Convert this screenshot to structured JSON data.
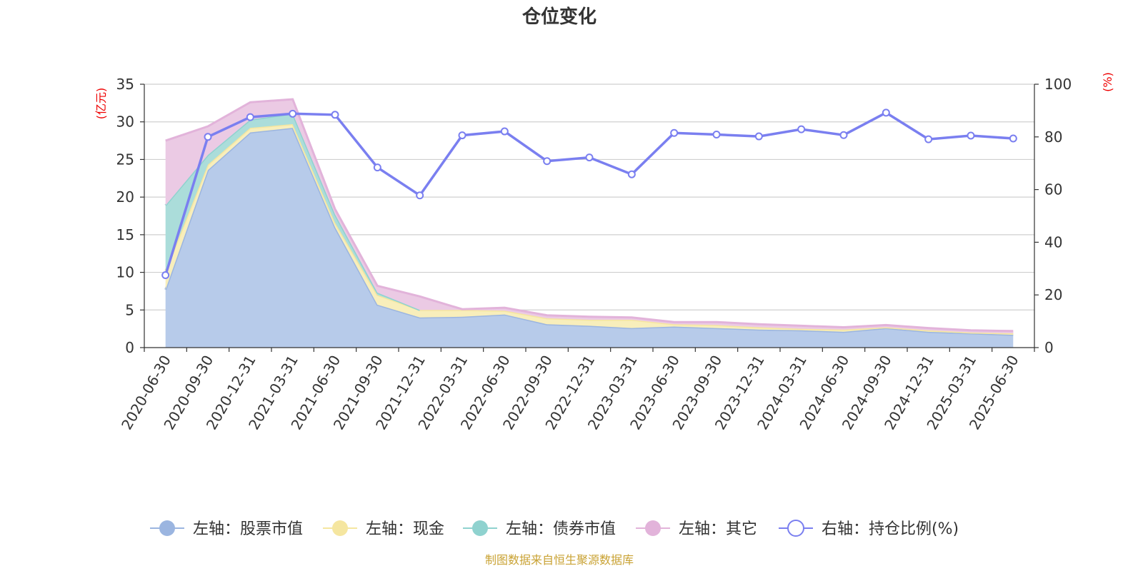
{
  "chart_data": {
    "type": "area",
    "title": "仓位变化",
    "categories": [
      "2020-06-30",
      "2020-09-30",
      "2020-12-31",
      "2021-03-31",
      "2021-06-30",
      "2021-09-30",
      "2021-12-31",
      "2022-03-31",
      "2022-06-30",
      "2022-09-30",
      "2022-12-31",
      "2023-03-31",
      "2023-06-30",
      "2023-09-30",
      "2023-12-31",
      "2024-03-31",
      "2024-06-30",
      "2024-09-30",
      "2024-12-31",
      "2025-03-31",
      "2025-06-30"
    ],
    "left_axis": {
      "unit": "(亿元)",
      "min": 0,
      "max": 35,
      "ticks": [
        "0",
        "5",
        "10",
        "15",
        "20",
        "25",
        "30",
        "35"
      ]
    },
    "right_axis": {
      "unit": "(%)",
      "min": 0,
      "max": 100,
      "ticks": [
        "0",
        "20",
        "40",
        "60",
        "80",
        "100"
      ]
    },
    "stacked": true,
    "series": [
      {
        "name": "左轴：股票市值",
        "axis": "left",
        "stack": true,
        "color": "#9bb5e0",
        "fill": "#b7cbea",
        "values": [
          7.7,
          23.6,
          28.6,
          29.2,
          16.0,
          5.7,
          4.0,
          4.1,
          4.4,
          3.1,
          2.9,
          2.6,
          2.8,
          2.6,
          2.4,
          2.3,
          2.1,
          2.6,
          2.1,
          1.9,
          1.7
        ]
      },
      {
        "name": "左轴：现金",
        "axis": "left",
        "stack": true,
        "color": "#f5e6a0",
        "fill": "#f8eebb",
        "values": [
          2.5,
          0.7,
          0.6,
          0.5,
          0.6,
          1.3,
          1.0,
          0.9,
          0.5,
          0.8,
          0.8,
          1.1,
          0.3,
          0.4,
          0.3,
          0.2,
          0.3,
          0.1,
          0.2,
          0.1,
          0.2
        ]
      },
      {
        "name": "左轴：债券市值",
        "axis": "left",
        "stack": true,
        "color": "#8fd2cf",
        "fill": "#abddda",
        "values": [
          8.7,
          1.3,
          1.1,
          1.4,
          1.1,
          0.3,
          0,
          0,
          0,
          0,
          0,
          0,
          0,
          0,
          0,
          0,
          0,
          0,
          0,
          0,
          0
        ]
      },
      {
        "name": "左轴：其它",
        "axis": "left",
        "stack": true,
        "color": "#e2b3da",
        "fill": "#ebcae4",
        "values": [
          8.6,
          3.8,
          2.3,
          1.9,
          0.7,
          0.9,
          1.8,
          0.1,
          0.4,
          0.4,
          0.4,
          0.3,
          0.3,
          0.4,
          0.4,
          0.4,
          0.3,
          0.3,
          0.3,
          0.3,
          0.3
        ]
      },
      {
        "name": "右轴：持仓比例(%)",
        "axis": "right",
        "type": "line",
        "color": "#7a7ff0",
        "values": [
          27.5,
          80.0,
          87.5,
          88.8,
          88.4,
          68.4,
          57.8,
          80.6,
          82.1,
          70.8,
          72.2,
          65.8,
          81.5,
          80.9,
          80.2,
          82.9,
          80.7,
          89.2,
          79.1,
          80.5,
          79.4
        ]
      }
    ],
    "grid": true,
    "legend_position": "bottom",
    "source_note": "制图数据来自恒生聚源数据库"
  }
}
